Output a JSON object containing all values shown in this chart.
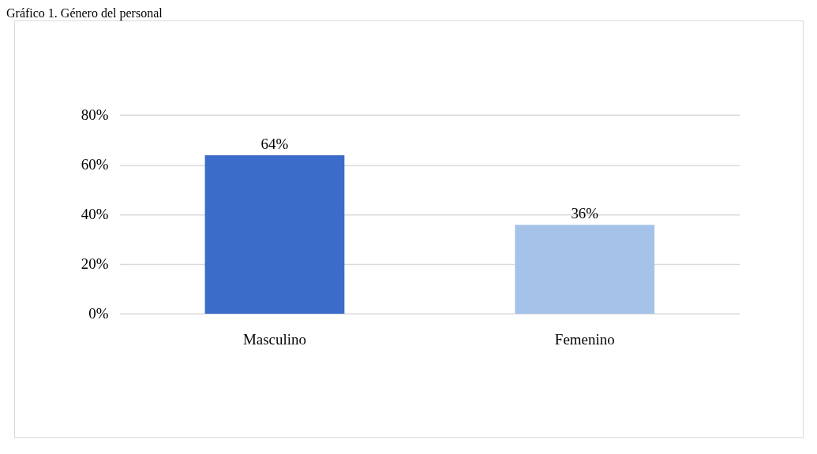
{
  "chart_data": {
    "type": "bar",
    "title": "Gráfico 1. Género del personal",
    "categories": [
      "Masculino",
      "Femenino"
    ],
    "values": [
      64,
      36
    ],
    "colors": [
      "#3c6cc9",
      "#a5c3e9"
    ],
    "ylim": [
      0,
      80
    ],
    "yticks": [
      {
        "value": 0,
        "label": "0%"
      },
      {
        "value": 20,
        "label": "20%"
      },
      {
        "value": 40,
        "label": "40%"
      },
      {
        "value": 60,
        "label": "60%"
      },
      {
        "value": 80,
        "label": "80%"
      }
    ],
    "value_labels": [
      "64%",
      "36%"
    ],
    "grid": "y",
    "legend": false
  }
}
